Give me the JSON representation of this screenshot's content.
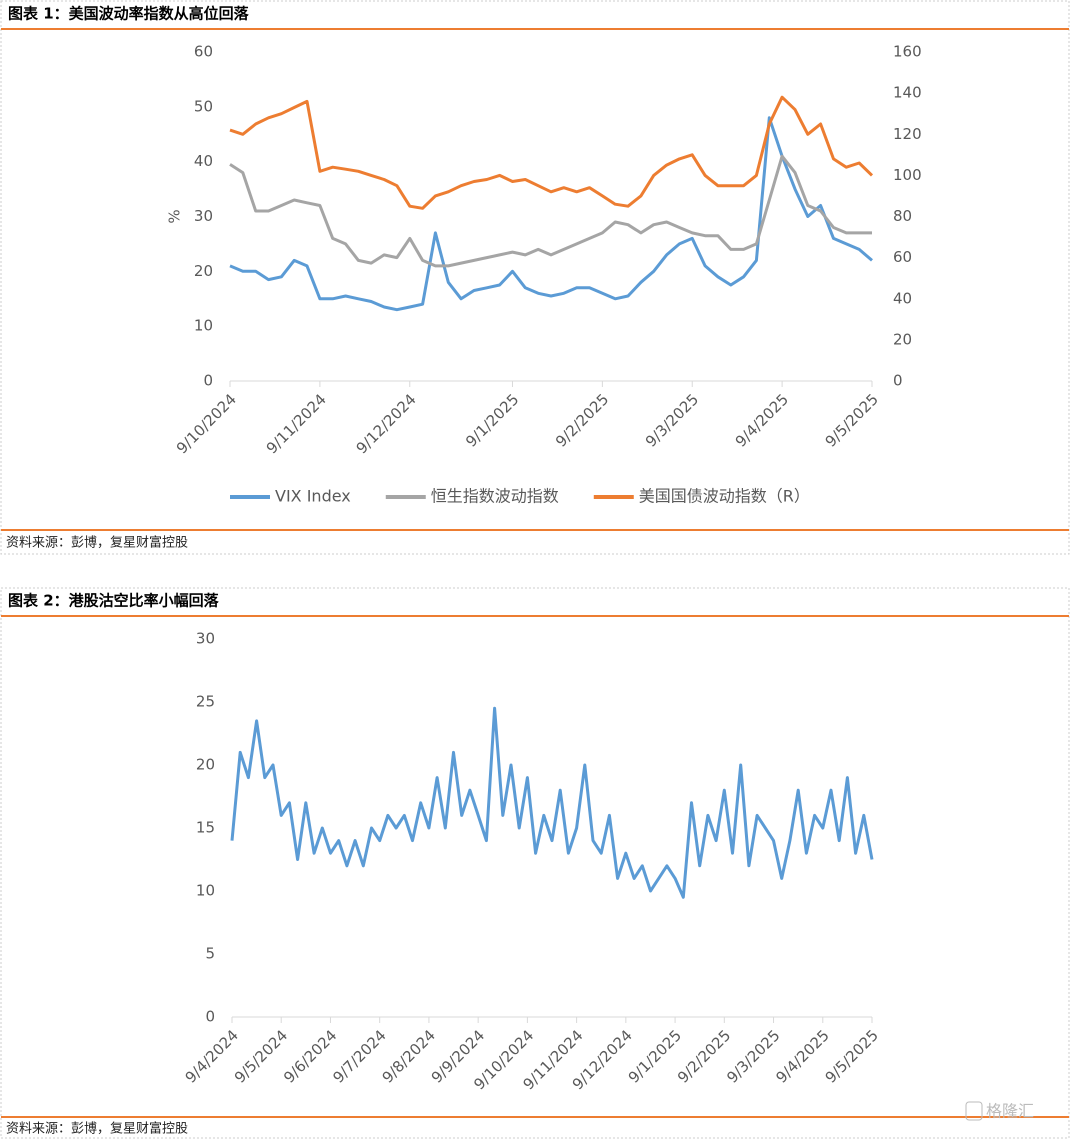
{
  "chart_data": [
    {
      "type": "line",
      "title": "图表 1：美国波动率指数从高位回落",
      "source": "资料来源：彭博，复星财富控股",
      "ylabel": "%",
      "categories": [
        "9/10/2024",
        null,
        null,
        null,
        null,
        null,
        null,
        "9/11/2024",
        null,
        null,
        null,
        null,
        null,
        null,
        "9/12/2024",
        null,
        null,
        null,
        null,
        null,
        null,
        null,
        "9/1/2025",
        null,
        null,
        null,
        null,
        null,
        null,
        "9/2/2025",
        null,
        null,
        null,
        null,
        null,
        null,
        "9/3/2025",
        null,
        null,
        null,
        null,
        null,
        null,
        "9/4/2025",
        null,
        null,
        null,
        null,
        null,
        null,
        "9/5/2025"
      ],
      "ylim": [
        0,
        60
      ],
      "yticks": [
        0,
        10,
        20,
        30,
        40,
        50,
        60
      ],
      "y2lim": [
        0,
        160
      ],
      "y2ticks": [
        0,
        20,
        40,
        60,
        80,
        100,
        120,
        140,
        160
      ],
      "series": [
        {
          "name": "VIX Index",
          "color": "#5b9bd5",
          "values": [
            21,
            20,
            20,
            18.5,
            19,
            22,
            21,
            15,
            15,
            15.5,
            15,
            14.5,
            13.5,
            13,
            13.5,
            14,
            27,
            18,
            15,
            16.5,
            17,
            17.5,
            20,
            17,
            16,
            15.5,
            16,
            17,
            17,
            16,
            15,
            15.5,
            18,
            20,
            23,
            25,
            26,
            21,
            19,
            17.5,
            19,
            22,
            48,
            41,
            35,
            30,
            32,
            26,
            25,
            24,
            22
          ]
        },
        {
          "name": "恒生指数波动指数",
          "color": "#a5a5a5",
          "values": [
            39.5,
            38,
            31,
            31,
            32,
            33,
            32.5,
            32,
            26,
            25,
            22,
            21.5,
            23,
            22.5,
            26,
            22,
            21,
            21,
            21.5,
            22,
            22.5,
            23,
            23.5,
            23,
            24,
            23,
            24,
            25,
            26,
            27,
            29,
            28.5,
            27,
            28.5,
            29,
            28,
            27,
            26.5,
            26.5,
            24,
            24,
            25,
            33,
            41,
            38,
            32,
            31,
            28,
            27,
            27,
            27
          ]
        },
        {
          "name": "美国国债波动指数（R）",
          "color": "#ed7d31",
          "axis": "y2",
          "values": [
            122,
            120,
            125,
            128,
            130,
            133,
            136,
            102,
            104,
            103,
            102,
            100,
            98,
            95,
            85,
            84,
            90,
            92,
            95,
            97,
            98,
            100,
            97,
            98,
            95,
            92,
            94,
            92,
            94,
            90,
            86,
            85,
            90,
            100,
            105,
            108,
            110,
            100,
            95,
            95,
            95,
            100,
            125,
            138,
            132,
            120,
            125,
            108,
            104,
            106,
            100
          ]
        }
      ]
    },
    {
      "type": "line",
      "title": "图表 2：港股沽空比率小幅回落",
      "source": "资料来源：彭博，复星财富控股",
      "categories": [
        "9/4/2024",
        null,
        null,
        null,
        null,
        null,
        "9/5/2024",
        null,
        null,
        null,
        null,
        null,
        "9/6/2024",
        null,
        null,
        null,
        null,
        null,
        "9/7/2024",
        null,
        null,
        null,
        null,
        null,
        "9/8/2024",
        null,
        null,
        null,
        null,
        null,
        "9/9/2024",
        null,
        null,
        null,
        null,
        null,
        "9/10/2024",
        null,
        null,
        null,
        null,
        null,
        "9/11/2024",
        null,
        null,
        null,
        null,
        null,
        "9/12/2024",
        null,
        null,
        null,
        null,
        null,
        "9/1/2025",
        null,
        null,
        null,
        null,
        null,
        "9/2/2025",
        null,
        null,
        null,
        null,
        null,
        "9/3/2025",
        null,
        null,
        null,
        null,
        null,
        "9/4/2025",
        null,
        null,
        null,
        null,
        null,
        "9/5/2025"
      ],
      "ylim": [
        0,
        30
      ],
      "yticks": [
        0,
        5,
        10,
        15,
        20,
        25,
        30
      ],
      "series": [
        {
          "name": "港股沽空比率",
          "color": "#5b9bd5",
          "values": [
            14,
            21,
            19,
            23.5,
            19,
            20,
            16,
            17,
            12.5,
            17,
            13,
            15,
            13,
            14,
            12,
            14,
            12,
            15,
            14,
            16,
            15,
            16,
            14,
            17,
            15,
            19,
            15,
            21,
            16,
            18,
            16,
            14,
            24.5,
            16,
            20,
            15,
            19,
            13,
            16,
            14,
            18,
            13,
            15,
            20,
            14,
            13,
            16,
            11,
            13,
            11,
            12,
            10,
            11,
            12,
            11,
            9.5,
            17,
            12,
            16,
            14,
            18,
            13,
            20,
            12,
            16,
            15,
            14,
            11,
            14,
            18,
            13,
            16,
            15,
            18,
            14,
            19,
            13,
            16,
            12.5
          ]
        }
      ]
    }
  ],
  "watermark": "格隆汇"
}
